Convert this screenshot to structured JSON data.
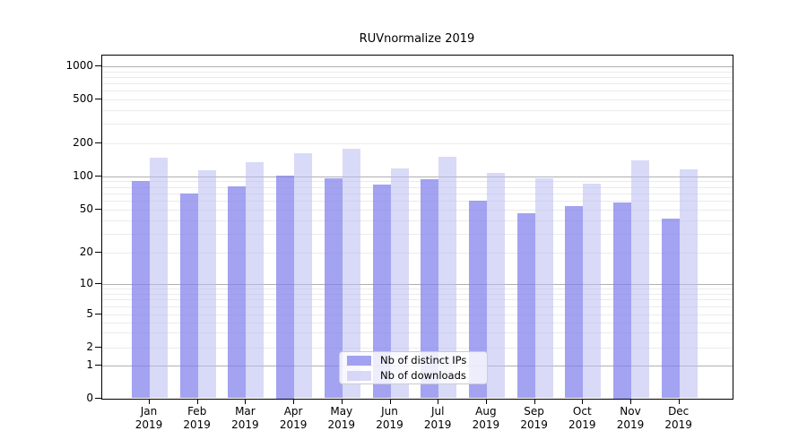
{
  "chart_data": {
    "type": "bar",
    "title": "RUVnormalize 2019",
    "categories": [
      "Jan 2019",
      "Feb 2019",
      "Mar 2019",
      "Apr 2019",
      "May 2019",
      "Jun 2019",
      "Jul 2019",
      "Aug 2019",
      "Sep 2019",
      "Oct 2019",
      "Nov 2019",
      "Dec 2019"
    ],
    "series": [
      {
        "name": "Nb of distinct IPs",
        "color": "rgba(127,127,236,0.72)",
        "values": [
          90,
          70,
          81,
          101,
          95,
          84,
          94,
          60,
          46,
          54,
          58,
          41
        ]
      },
      {
        "name": "Nb of downloads",
        "color": "rgba(186,186,242,0.55)",
        "values": [
          148,
          113,
          134,
          163,
          178,
          118,
          150,
          107,
          95,
          86,
          140,
          116
        ]
      }
    ],
    "xlabel": "",
    "ylabel": "",
    "yscale": "symlog",
    "yticks": [
      0,
      1,
      2,
      5,
      10,
      20,
      50,
      100,
      200,
      500,
      1000
    ],
    "ylim": [
      0,
      1400
    ],
    "grid": true,
    "gridline_major_values": [
      1,
      10,
      100,
      1000
    ],
    "legend_position": "lower center",
    "colors": {
      "axis": "#000000",
      "grid_major": "#b0b0b0",
      "grid_minor": "#ebebeb",
      "background": "#ffffff"
    }
  }
}
